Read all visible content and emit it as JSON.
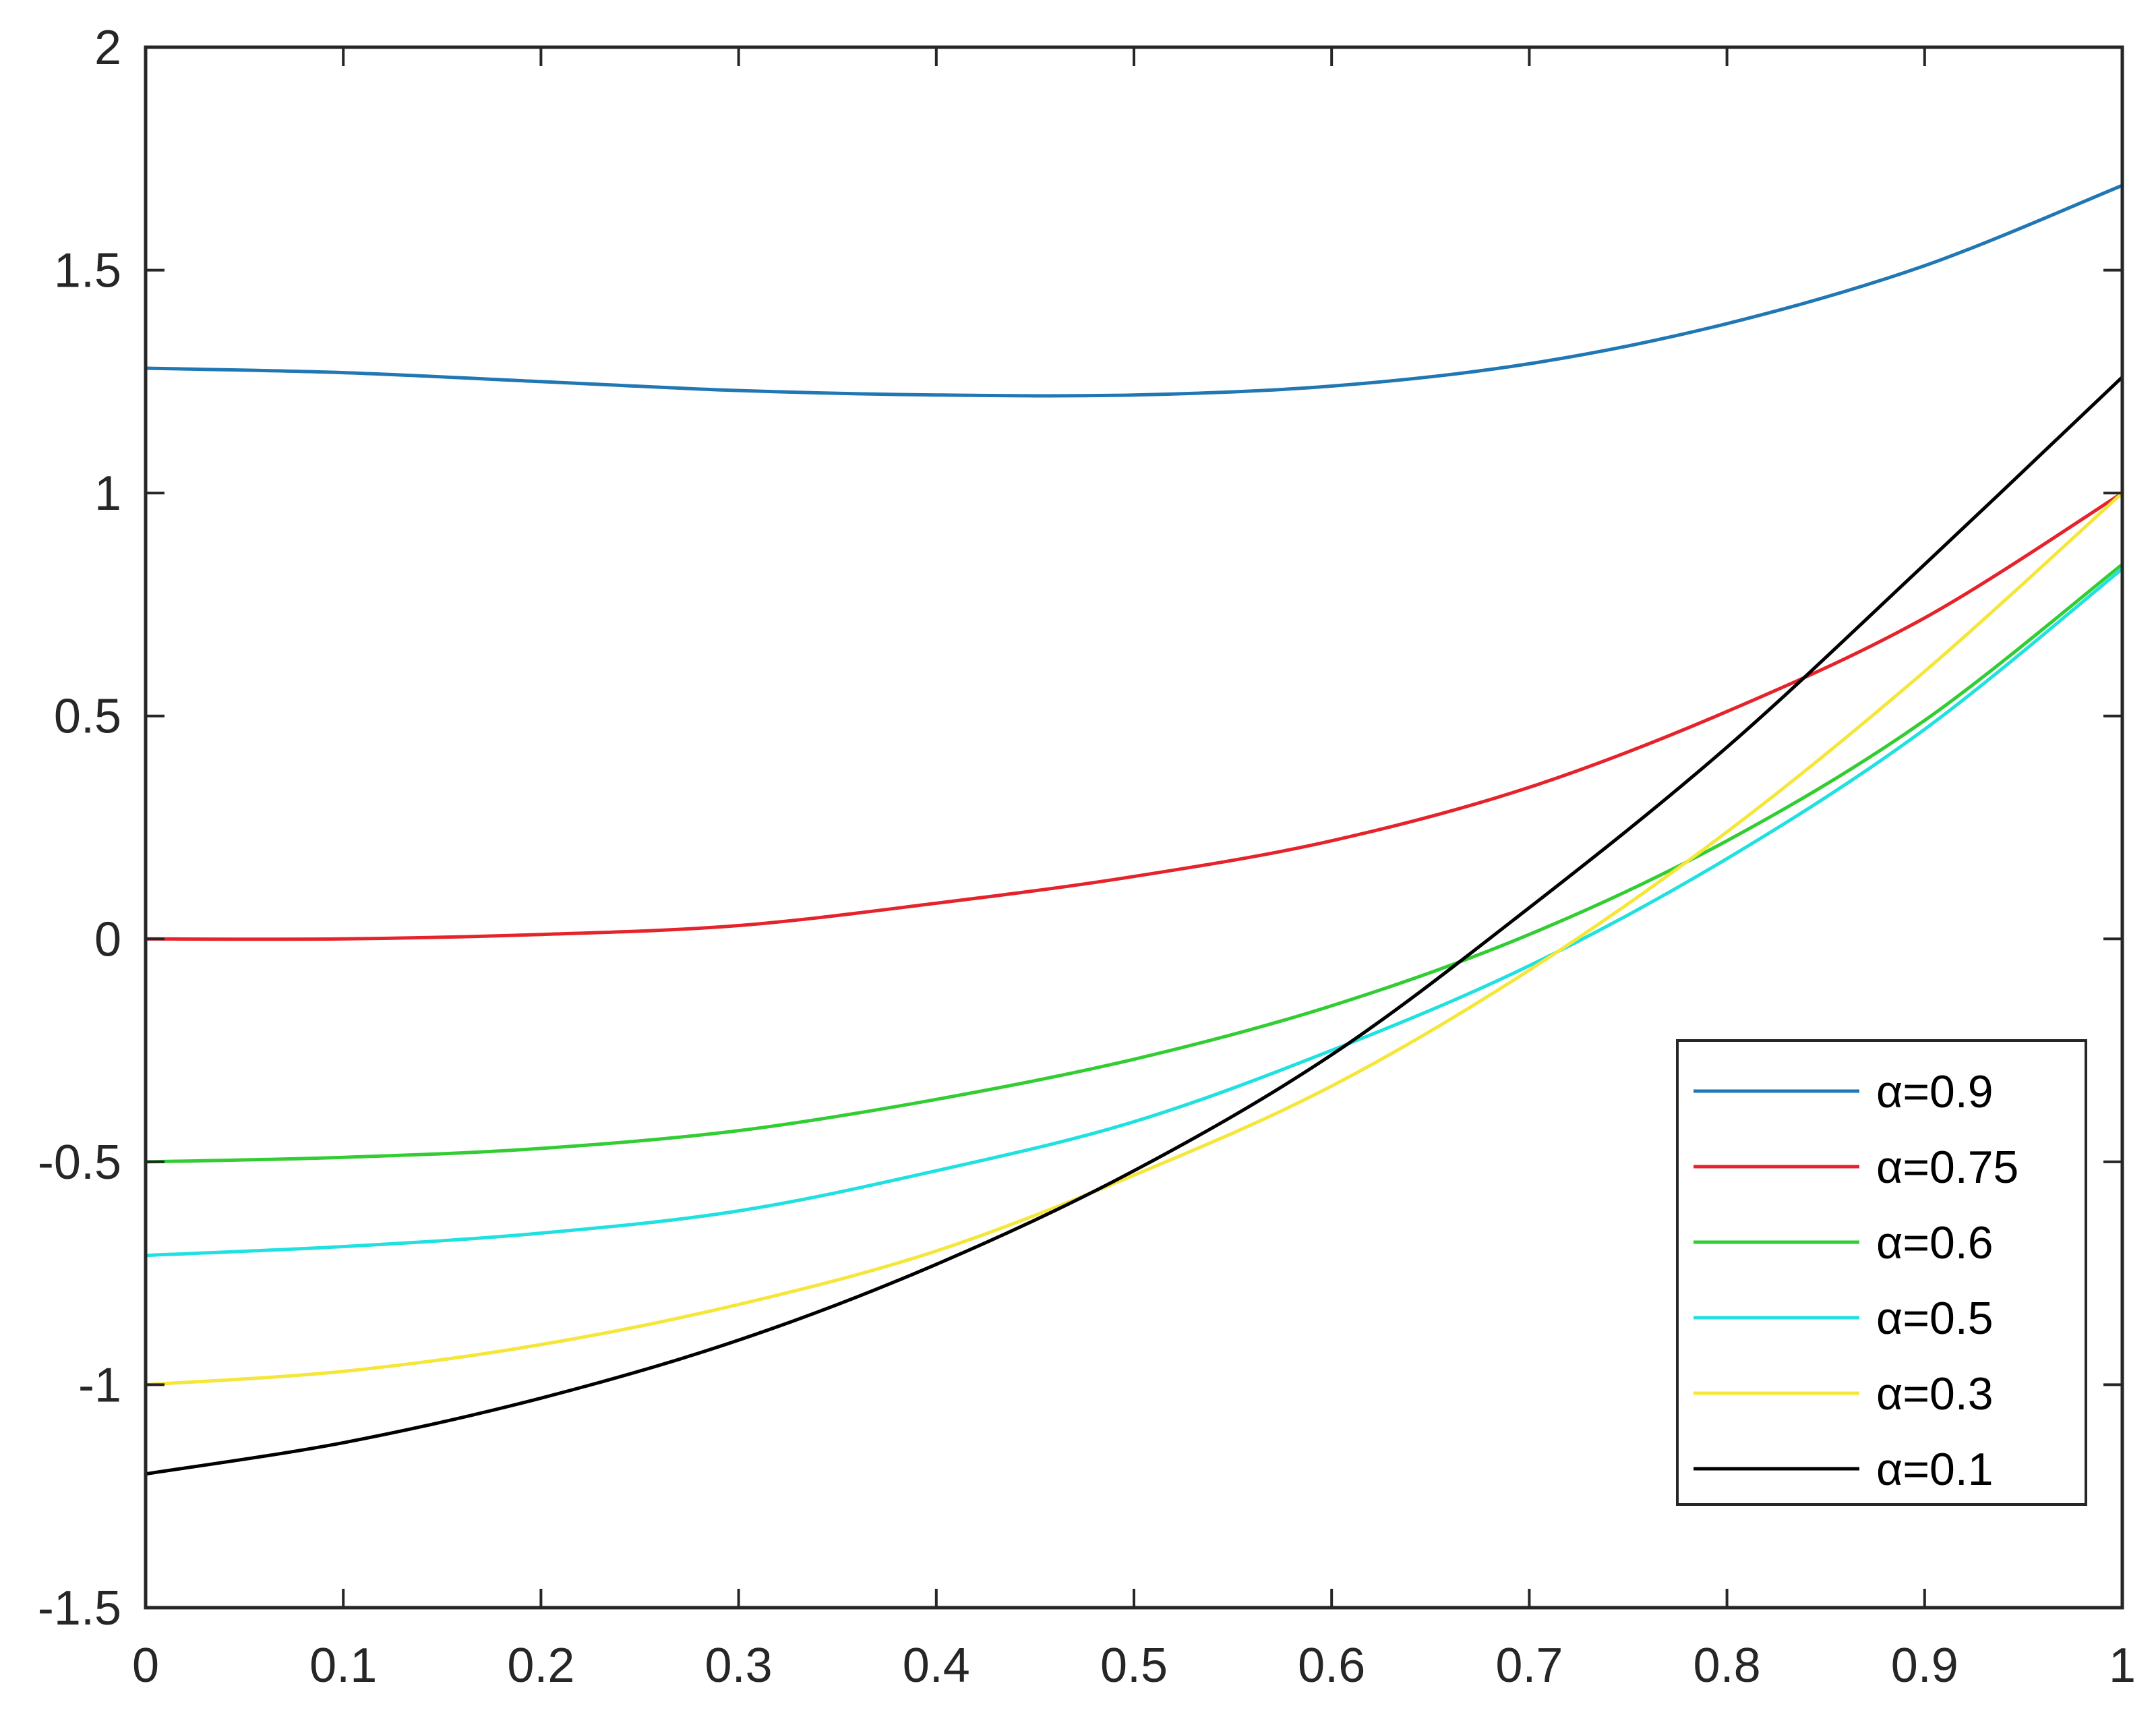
{
  "chart_data": {
    "type": "line",
    "title": "",
    "xlabel": "",
    "ylabel": "",
    "xlim": [
      0,
      1
    ],
    "ylim": [
      -1.5,
      2
    ],
    "xticks": [
      "0",
      "0.1",
      "0.2",
      "0.3",
      "0.4",
      "0.5",
      "0.6",
      "0.7",
      "0.8",
      "0.9",
      "1"
    ],
    "yticks": [
      "-1.5",
      "-1",
      "-0.5",
      "0",
      "0.5",
      "1",
      "1.5",
      "2"
    ],
    "grid": false,
    "legend_position": "bottom-right",
    "x": [
      0,
      0.1,
      0.2,
      0.3,
      0.4,
      0.5,
      0.6,
      0.7,
      0.8,
      0.9,
      1.0
    ],
    "series": [
      {
        "name": "α=0.9",
        "color": "#1f77b4",
        "values": [
          1.28,
          1.27,
          1.25,
          1.23,
          1.22,
          1.22,
          1.24,
          1.29,
          1.38,
          1.51,
          1.69
        ]
      },
      {
        "name": "α=0.75",
        "color": "#e5232b",
        "values": [
          0.0,
          0.0,
          0.01,
          0.03,
          0.08,
          0.14,
          0.22,
          0.34,
          0.51,
          0.72,
          1.0
        ]
      },
      {
        "name": "α=0.6",
        "color": "#32cd32",
        "values": [
          -0.5,
          -0.49,
          -0.47,
          -0.43,
          -0.36,
          -0.27,
          -0.15,
          0.01,
          0.22,
          0.49,
          0.84
        ]
      },
      {
        "name": "α=0.5",
        "color": "#20e0e0",
        "values": [
          -0.71,
          -0.69,
          -0.66,
          -0.61,
          -0.52,
          -0.41,
          -0.25,
          -0.06,
          0.18,
          0.47,
          0.83
        ]
      },
      {
        "name": "α=0.3",
        "color": "#f5e63a",
        "values": [
          -1.0,
          -0.97,
          -0.91,
          -0.82,
          -0.7,
          -0.53,
          -0.33,
          -0.07,
          0.24,
          0.6,
          1.0
        ]
      },
      {
        "name": "α=0.1",
        "color": "#000000",
        "values": [
          -1.2,
          -1.13,
          -1.03,
          -0.9,
          -0.73,
          -0.52,
          -0.26,
          0.07,
          0.43,
          0.84,
          1.26
        ]
      }
    ]
  }
}
